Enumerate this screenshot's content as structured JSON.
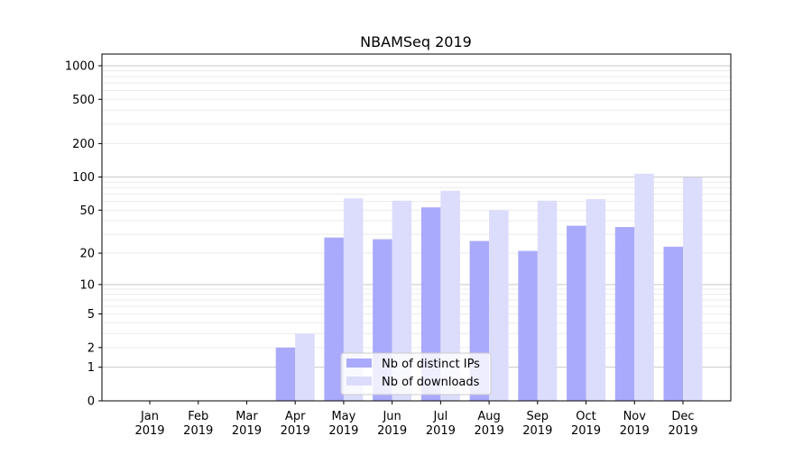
{
  "chart_data": {
    "type": "bar",
    "title": "NBAMSeq 2019",
    "xlabel": "",
    "ylabel": "",
    "yscale": "log(y+1)",
    "ylim": [
      0,
      1273
    ],
    "grid": true,
    "legend_placement": "lower-center",
    "categories": [
      "Jan\n2019",
      "Feb\n2019",
      "Mar\n2019",
      "Apr\n2019",
      "May\n2019",
      "Jun\n2019",
      "Jul\n2019",
      "Aug\n2019",
      "Sep\n2019",
      "Oct\n2019",
      "Nov\n2019",
      "Dec\n2019"
    ],
    "yticks": [
      0,
      1,
      2,
      5,
      10,
      20,
      50,
      100,
      200,
      500,
      1000
    ],
    "series": [
      {
        "name": "Nb of distinct IPs",
        "color": "#aaaafc",
        "values": [
          0,
          0,
          0,
          2,
          28,
          27,
          53,
          26,
          21,
          36,
          35,
          23
        ]
      },
      {
        "name": "Nb of downloads",
        "color": "#dcdcfc",
        "values": [
          0,
          0,
          0,
          3,
          64,
          61,
          75,
          50,
          61,
          63,
          107,
          99
        ]
      }
    ]
  }
}
